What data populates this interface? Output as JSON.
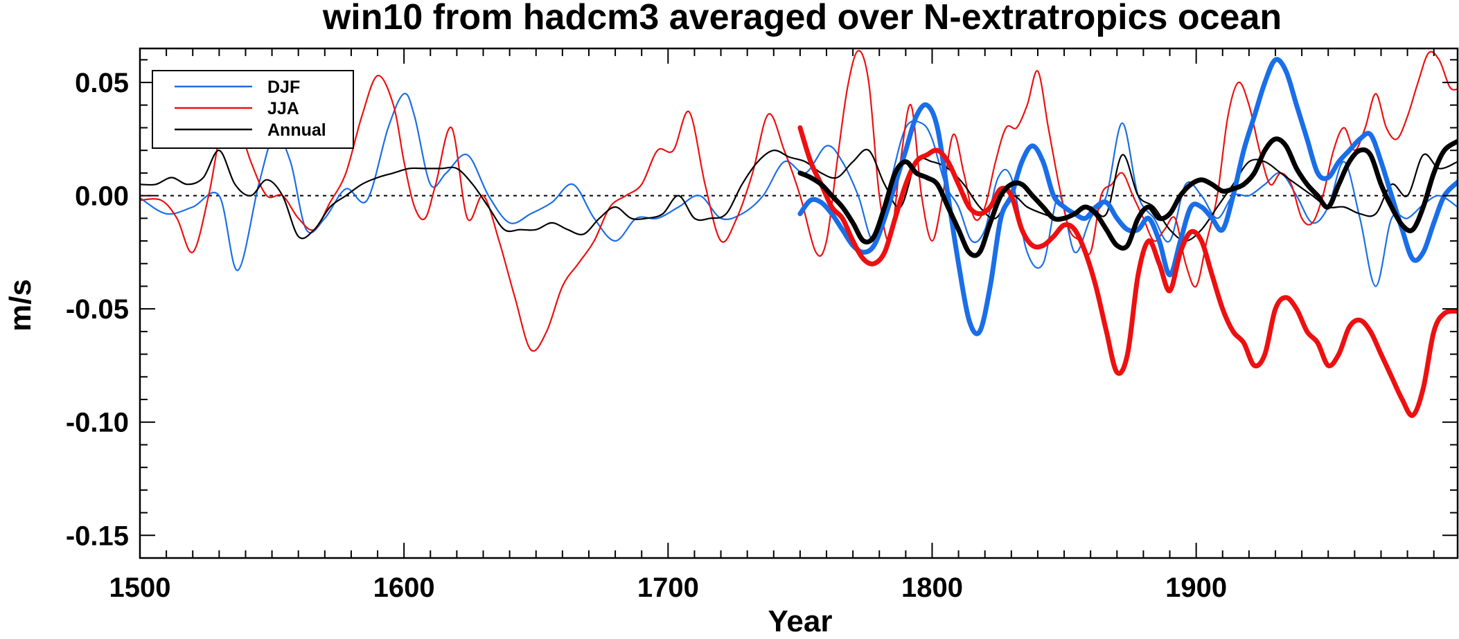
{
  "chart_data": {
    "type": "line",
    "title": "win10 from hadcm3 averaged over N-extratropics ocean",
    "xlabel": "Year",
    "ylabel": "m/s",
    "xlim": [
      1500,
      1999
    ],
    "ylim": [
      -0.16,
      0.065
    ],
    "x_ticks": [
      1500,
      1600,
      1700,
      1800,
      1900
    ],
    "x_tick_labels": [
      "1500",
      "1600",
      "1700",
      "1800",
      "1900"
    ],
    "y_ticks": [
      0.05,
      0.0,
      -0.05,
      -0.1,
      -0.15
    ],
    "y_tick_labels": [
      "0.05",
      "0.00",
      "-0.05",
      "-0.10",
      "-0.15"
    ],
    "zero_line": true,
    "legend_position": "top-left",
    "legend": [
      {
        "label": "DJF",
        "color": "#1a6ee8"
      },
      {
        "label": "JJA",
        "color": "#ee1010"
      },
      {
        "label": "Annual",
        "color": "#000000"
      }
    ],
    "series": [
      {
        "name": "DJF",
        "color": "#1a6ee8",
        "weight": "thin",
        "x": [
          1500,
          1510,
          1520,
          1530,
          1537,
          1545,
          1551,
          1557,
          1563,
          1570,
          1578,
          1586,
          1594,
          1600,
          1604,
          1610,
          1616,
          1624,
          1632,
          1640,
          1648,
          1656,
          1664,
          1672,
          1680,
          1688,
          1696,
          1704,
          1712,
          1720,
          1728,
          1736,
          1744,
          1752,
          1760,
          1766,
          1772,
          1778,
          1784,
          1790,
          1796,
          1800,
          1805,
          1810,
          1815,
          1820,
          1825,
          1830,
          1836,
          1842,
          1848,
          1854,
          1860,
          1866,
          1872,
          1878,
          1884,
          1890,
          1896,
          1902,
          1908,
          1914,
          1920,
          1926,
          1932,
          1938,
          1944,
          1950,
          1956,
          1962,
          1968,
          1974,
          1980,
          1986,
          1992,
          1999
        ],
        "y": [
          -0.001,
          -0.008,
          -0.005,
          0.0,
          -0.033,
          0.005,
          0.027,
          0.015,
          -0.015,
          -0.01,
          0.003,
          -0.002,
          0.03,
          0.045,
          0.035,
          0.005,
          0.01,
          0.018,
          0.0,
          -0.012,
          -0.008,
          -0.003,
          0.005,
          -0.01,
          -0.02,
          -0.01,
          -0.01,
          -0.005,
          0.0,
          -0.01,
          -0.008,
          0.0,
          0.015,
          0.01,
          0.022,
          0.015,
          0.0,
          -0.02,
          0.005,
          0.03,
          0.032,
          0.025,
          0.005,
          -0.005,
          -0.02,
          -0.015,
          0.008,
          0.008,
          -0.025,
          -0.03,
          0.0,
          -0.025,
          -0.01,
          0.0,
          0.032,
          0.0,
          -0.01,
          -0.02,
          0.005,
          0.0,
          -0.01,
          0.0,
          0.0,
          0.005,
          0.01,
          0.0,
          -0.012,
          -0.005,
          0.015,
          -0.01,
          -0.04,
          -0.01,
          -0.01,
          -0.004,
          0.0,
          -0.005
        ]
      },
      {
        "name": "JJA",
        "color": "#ee1010",
        "weight": "thin",
        "x": [
          1500,
          1508,
          1514,
          1520,
          1526,
          1531,
          1536,
          1542,
          1548,
          1554,
          1560,
          1566,
          1572,
          1578,
          1584,
          1590,
          1596,
          1600,
          1604,
          1608,
          1612,
          1618,
          1624,
          1630,
          1636,
          1642,
          1648,
          1654,
          1660,
          1666,
          1672,
          1678,
          1684,
          1690,
          1696,
          1702,
          1708,
          1714,
          1720,
          1726,
          1732,
          1738,
          1744,
          1750,
          1756,
          1760,
          1764,
          1768,
          1772,
          1776,
          1780,
          1784,
          1788,
          1792,
          1796,
          1800,
          1804,
          1808,
          1812,
          1816,
          1820,
          1824,
          1828,
          1832,
          1836,
          1840,
          1844,
          1848,
          1852,
          1856,
          1860,
          1864,
          1868,
          1872,
          1876,
          1880,
          1884,
          1888,
          1892,
          1896,
          1900,
          1904,
          1908,
          1912,
          1916,
          1920,
          1924,
          1928,
          1932,
          1936,
          1940,
          1944,
          1948,
          1952,
          1956,
          1960,
          1964,
          1968,
          1972,
          1976,
          1980,
          1984,
          1988,
          1992,
          1996,
          1999
        ],
        "y": [
          -0.002,
          -0.002,
          -0.01,
          -0.025,
          0.0,
          0.03,
          0.035,
          0.015,
          0.0,
          0.0,
          -0.01,
          -0.015,
          -0.003,
          0.01,
          0.035,
          0.053,
          0.04,
          0.015,
          -0.005,
          -0.01,
          0.005,
          0.03,
          -0.01,
          0.0,
          -0.02,
          -0.045,
          -0.068,
          -0.06,
          -0.04,
          -0.03,
          -0.02,
          -0.005,
          0.0,
          0.005,
          0.02,
          0.02,
          0.037,
          0.005,
          -0.02,
          -0.01,
          0.01,
          0.036,
          0.02,
          0.0,
          -0.025,
          -0.02,
          0.015,
          0.048,
          0.064,
          0.05,
          0.0,
          -0.02,
          0.015,
          0.04,
          0.0,
          -0.02,
          0.0,
          0.027,
          0.01,
          -0.01,
          -0.005,
          0.015,
          0.03,
          0.03,
          0.04,
          0.055,
          0.03,
          0.005,
          -0.015,
          -0.02,
          -0.025,
          0.0,
          0.005,
          0.01,
          0.0,
          -0.01,
          -0.02,
          -0.015,
          -0.01,
          -0.03,
          -0.04,
          -0.02,
          0.0,
          0.035,
          0.05,
          0.04,
          0.02,
          0.005,
          0.01,
          0.005,
          -0.01,
          -0.012,
          0.0,
          0.02,
          0.03,
          0.02,
          0.03,
          0.045,
          0.03,
          0.025,
          0.035,
          0.05,
          0.063,
          0.06,
          0.048,
          0.047
        ]
      },
      {
        "name": "Annual",
        "color": "#000000",
        "weight": "thin",
        "x": [
          1500,
          1506,
          1512,
          1518,
          1524,
          1530,
          1536,
          1542,
          1548,
          1554,
          1560,
          1566,
          1572,
          1578,
          1584,
          1590,
          1596,
          1602,
          1608,
          1614,
          1620,
          1626,
          1632,
          1638,
          1644,
          1650,
          1656,
          1662,
          1668,
          1674,
          1680,
          1686,
          1692,
          1698,
          1704,
          1710,
          1716,
          1722,
          1728,
          1734,
          1740,
          1746,
          1752,
          1758,
          1764,
          1770,
          1776,
          1782,
          1788,
          1794,
          1800,
          1806,
          1812,
          1818,
          1824,
          1830,
          1836,
          1842,
          1848,
          1854,
          1860,
          1866,
          1872,
          1878,
          1884,
          1890,
          1896,
          1902,
          1908,
          1914,
          1920,
          1926,
          1932,
          1938,
          1944,
          1950,
          1956,
          1962,
          1968,
          1974,
          1980,
          1986,
          1992,
          1999
        ],
        "y": [
          0.005,
          0.005,
          0.008,
          0.005,
          0.008,
          0.02,
          0.005,
          0.0,
          0.007,
          0.0,
          -0.018,
          -0.015,
          -0.005,
          0.0,
          0.005,
          0.008,
          0.01,
          0.012,
          0.012,
          0.012,
          0.012,
          0.005,
          -0.005,
          -0.015,
          -0.015,
          -0.015,
          -0.012,
          -0.015,
          -0.017,
          -0.01,
          -0.005,
          -0.01,
          -0.01,
          -0.008,
          0.0,
          -0.01,
          -0.01,
          -0.008,
          0.005,
          0.015,
          0.02,
          0.017,
          0.015,
          0.01,
          0.008,
          0.015,
          0.02,
          0.005,
          -0.005,
          0.015,
          0.015,
          0.012,
          0.005,
          -0.005,
          -0.01,
          0.0,
          -0.005,
          -0.008,
          -0.01,
          -0.008,
          -0.005,
          -0.008,
          0.018,
          0.0,
          -0.005,
          -0.015,
          -0.02,
          -0.015,
          -0.005,
          0.005,
          0.015,
          0.015,
          0.01,
          0.005,
          0.0,
          -0.005,
          -0.005,
          -0.008,
          -0.008,
          0.005,
          0.0,
          0.018,
          0.012,
          0.015
        ]
      },
      {
        "name": "DJF",
        "color": "#1a6ee8",
        "weight": "thick",
        "x": [
          1750,
          1754,
          1758,
          1762,
          1766,
          1770,
          1774,
          1778,
          1782,
          1786,
          1790,
          1794,
          1798,
          1802,
          1806,
          1810,
          1814,
          1818,
          1822,
          1826,
          1830,
          1834,
          1838,
          1842,
          1846,
          1850,
          1854,
          1858,
          1862,
          1866,
          1870,
          1874,
          1878,
          1882,
          1886,
          1890,
          1894,
          1898,
          1902,
          1906,
          1910,
          1914,
          1918,
          1922,
          1926,
          1930,
          1934,
          1938,
          1942,
          1946,
          1950,
          1954,
          1958,
          1962,
          1966,
          1970,
          1974,
          1978,
          1982,
          1986,
          1990,
          1994,
          1999
        ],
        "y": [
          -0.008,
          -0.002,
          -0.003,
          -0.008,
          -0.015,
          -0.022,
          -0.025,
          -0.022,
          -0.01,
          0.005,
          0.02,
          0.035,
          0.04,
          0.03,
          0.0,
          -0.03,
          -0.055,
          -0.06,
          -0.04,
          -0.01,
          0.0,
          0.015,
          0.022,
          0.015,
          0.0,
          -0.005,
          -0.008,
          -0.01,
          -0.005,
          -0.003,
          -0.01,
          -0.015,
          -0.015,
          -0.01,
          -0.02,
          -0.035,
          -0.02,
          -0.005,
          -0.005,
          -0.01,
          -0.015,
          0.0,
          0.02,
          0.035,
          0.05,
          0.06,
          0.055,
          0.04,
          0.025,
          0.01,
          0.008,
          0.015,
          0.02,
          0.025,
          0.027,
          0.015,
          0.0,
          -0.015,
          -0.028,
          -0.025,
          -0.012,
          0.0,
          0.006
        ]
      },
      {
        "name": "JJA",
        "color": "#ee1010",
        "weight": "thick",
        "x": [
          1750,
          1754,
          1758,
          1762,
          1766,
          1770,
          1774,
          1778,
          1782,
          1786,
          1790,
          1794,
          1798,
          1802,
          1806,
          1810,
          1814,
          1818,
          1822,
          1826,
          1830,
          1834,
          1838,
          1842,
          1846,
          1850,
          1854,
          1858,
          1862,
          1866,
          1870,
          1874,
          1878,
          1882,
          1886,
          1890,
          1894,
          1898,
          1902,
          1906,
          1910,
          1914,
          1918,
          1922,
          1926,
          1930,
          1934,
          1938,
          1942,
          1946,
          1950,
          1954,
          1958,
          1962,
          1966,
          1970,
          1974,
          1978,
          1982,
          1986,
          1990,
          1994,
          1999
        ],
        "y": [
          0.03,
          0.015,
          0.005,
          -0.005,
          -0.01,
          -0.02,
          -0.028,
          -0.03,
          -0.025,
          -0.01,
          0.005,
          0.015,
          0.018,
          0.02,
          0.015,
          0.005,
          -0.005,
          -0.008,
          -0.005,
          0.003,
          0.0,
          -0.015,
          -0.022,
          -0.022,
          -0.018,
          -0.013,
          -0.015,
          -0.025,
          -0.04,
          -0.06,
          -0.078,
          -0.07,
          -0.035,
          -0.02,
          -0.03,
          -0.042,
          -0.025,
          -0.016,
          -0.02,
          -0.035,
          -0.05,
          -0.06,
          -0.065,
          -0.075,
          -0.07,
          -0.05,
          -0.045,
          -0.05,
          -0.06,
          -0.065,
          -0.075,
          -0.07,
          -0.058,
          -0.055,
          -0.06,
          -0.07,
          -0.08,
          -0.09,
          -0.097,
          -0.085,
          -0.06,
          -0.052,
          -0.051
        ]
      },
      {
        "name": "Annual",
        "color": "#000000",
        "weight": "thick",
        "x": [
          1750,
          1754,
          1758,
          1762,
          1766,
          1770,
          1774,
          1778,
          1782,
          1786,
          1790,
          1794,
          1798,
          1802,
          1806,
          1810,
          1814,
          1818,
          1822,
          1826,
          1830,
          1834,
          1838,
          1842,
          1846,
          1850,
          1854,
          1858,
          1862,
          1866,
          1870,
          1874,
          1878,
          1882,
          1886,
          1890,
          1894,
          1898,
          1902,
          1906,
          1910,
          1914,
          1918,
          1922,
          1926,
          1930,
          1934,
          1938,
          1942,
          1946,
          1950,
          1954,
          1958,
          1962,
          1966,
          1970,
          1974,
          1978,
          1982,
          1986,
          1990,
          1994,
          1999
        ],
        "y": [
          0.01,
          0.008,
          0.005,
          0.0,
          -0.005,
          -0.012,
          -0.02,
          -0.018,
          -0.005,
          0.01,
          0.015,
          0.01,
          0.008,
          0.005,
          -0.005,
          -0.015,
          -0.025,
          -0.025,
          -0.012,
          0.0,
          0.005,
          0.005,
          0.0,
          -0.005,
          -0.01,
          -0.01,
          -0.008,
          -0.005,
          -0.008,
          -0.015,
          -0.022,
          -0.022,
          -0.01,
          -0.005,
          -0.01,
          -0.008,
          0.0,
          0.005,
          0.007,
          0.005,
          0.002,
          0.003,
          0.005,
          0.01,
          0.02,
          0.025,
          0.022,
          0.012,
          0.005,
          0.0,
          -0.005,
          0.005,
          0.015,
          0.02,
          0.018,
          0.005,
          -0.005,
          -0.013,
          -0.015,
          -0.005,
          0.01,
          0.02,
          0.024
        ]
      }
    ]
  }
}
